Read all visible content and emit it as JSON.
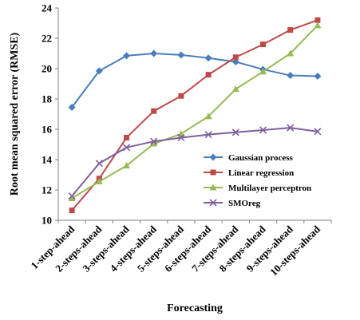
{
  "chart_data": {
    "type": "line",
    "xlabel": "Forecasting",
    "ylabel": "Root mean squared error (RMSE)",
    "ylim": [
      10,
      24
    ],
    "yticks": [
      10,
      12,
      14,
      16,
      18,
      20,
      22,
      24
    ],
    "grid": false,
    "legend_position": "right-center",
    "categories": [
      "1-step-ahead",
      "2-steps-ahead",
      "3-steps-ahead",
      "4-steps-ahead",
      "5-steps-ahead",
      "6-steps-ahead",
      "7-steps-ahead",
      "8-steps-ahead",
      "9-steps-ahead",
      "10-steps-ahead"
    ],
    "series": [
      {
        "name": "Gaussian process",
        "color": "#4A7EBB",
        "marker": "diamond",
        "values": [
          17.45,
          19.85,
          20.85,
          21.0,
          20.9,
          20.7,
          20.45,
          19.95,
          19.55,
          19.5
        ]
      },
      {
        "name": "Linear regression",
        "color": "#BE4B48",
        "marker": "square",
        "values": [
          10.65,
          12.75,
          15.45,
          17.2,
          18.2,
          19.6,
          20.75,
          21.6,
          22.55,
          23.2
        ]
      },
      {
        "name": "Multilayer perceptron",
        "color": "#98B954",
        "marker": "triangle",
        "values": [
          11.45,
          12.55,
          13.6,
          15.05,
          15.7,
          16.85,
          18.65,
          19.8,
          21.0,
          22.85
        ]
      },
      {
        "name": "SMOreg",
        "color": "#7D60A0",
        "marker": "cross",
        "values": [
          11.6,
          13.75,
          14.8,
          15.2,
          15.45,
          15.65,
          15.8,
          15.95,
          16.1,
          15.85
        ]
      }
    ]
  }
}
